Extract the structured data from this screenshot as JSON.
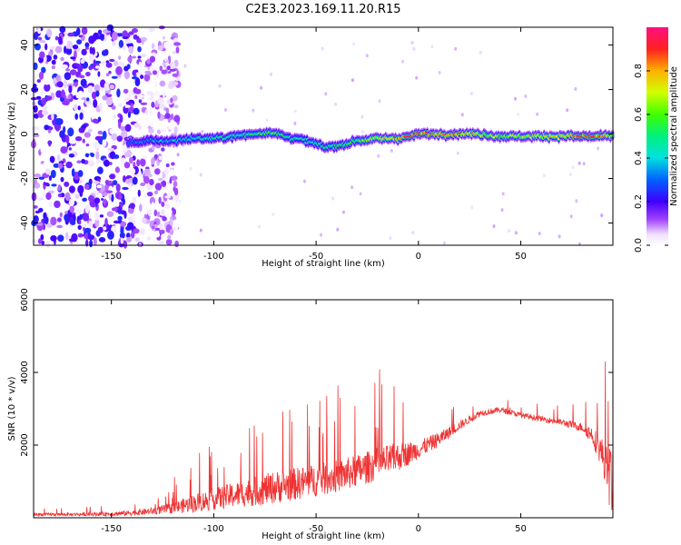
{
  "title": "C2E3.2023.169.11.20.R15",
  "colors": {
    "snr_line": "#ee3333",
    "axis": "#000000"
  },
  "chart_data": [
    {
      "type": "heatmap",
      "xlabel": "Height of straight line (km)",
      "ylabel": "Frequency (Hz)",
      "xlim": [
        -188,
        95
      ],
      "ylim": [
        -50,
        48
      ],
      "xticks": [
        -150,
        -100,
        -50,
        0,
        50
      ],
      "yticks": [
        -40,
        -20,
        0,
        20,
        40
      ],
      "colorbar": {
        "label": "Normalized spectral amplitude",
        "range": [
          0,
          1
        ],
        "ticks": [
          "0.0",
          "0.2",
          "0.4",
          "0.6",
          "0.8"
        ],
        "tick_values": [
          0.0,
          0.2,
          0.4,
          0.6,
          0.8
        ],
        "colormap": "white-violet-blue-cyan-green-yellow-red-pink"
      },
      "ridge": {
        "x": [
          -142,
          -130,
          -120,
          -110,
          -100,
          -90,
          -80,
          -72,
          -65,
          -55,
          -45,
          -38,
          -30,
          -20,
          -10,
          0,
          10,
          20,
          30,
          40,
          50,
          60,
          70,
          80,
          90,
          95
        ],
        "y": [
          -4,
          -3,
          -3,
          -2,
          -2,
          -1,
          0,
          1,
          -1,
          -3,
          -6,
          -5,
          -3,
          -2,
          -2,
          0,
          0,
          0,
          0,
          -1,
          -1,
          -1,
          -1,
          -1,
          -1,
          -1
        ],
        "amplitude": [
          0.3,
          0.35,
          0.4,
          0.45,
          0.5,
          0.5,
          0.55,
          0.6,
          0.5,
          0.45,
          0.5,
          0.55,
          0.6,
          0.7,
          0.85,
          0.95,
          0.85,
          0.9,
          0.7,
          0.65,
          0.7,
          0.75,
          0.8,
          0.9,
          0.85,
          0.7
        ]
      },
      "noise_region_xlim": [
        -188,
        -125
      ]
    },
    {
      "type": "line",
      "xlabel": "Height of straight line (km)",
      "ylabel": "SNR (10 * v/v)",
      "xlim": [
        -188,
        95
      ],
      "ylim": [
        0,
        6000
      ],
      "xticks": [
        -150,
        -100,
        -50,
        0,
        50
      ],
      "yticks": [
        2000,
        4000,
        6000
      ],
      "envelope": {
        "x": [
          -188,
          -170,
          -150,
          -140,
          -130,
          -120,
          -110,
          -100,
          -90,
          -80,
          -70,
          -60,
          -50,
          -40,
          -30,
          -20,
          -10,
          0,
          10,
          20,
          30,
          40,
          50,
          60,
          70,
          80,
          85,
          90,
          93,
          95
        ],
        "base": [
          80,
          80,
          90,
          110,
          150,
          220,
          320,
          420,
          520,
          600,
          700,
          800,
          900,
          1000,
          1150,
          1350,
          1550,
          1800,
          2100,
          2500,
          2850,
          2950,
          2800,
          2700,
          2600,
          2450,
          2200,
          1600,
          900,
          700
        ],
        "spread": [
          80,
          80,
          120,
          150,
          200,
          300,
          500,
          600,
          700,
          800,
          900,
          900,
          900,
          900,
          900,
          900,
          800,
          500,
          400,
          250,
          180,
          150,
          150,
          150,
          180,
          250,
          500,
          900,
          1500,
          2500
        ]
      },
      "points": 1600
    }
  ]
}
